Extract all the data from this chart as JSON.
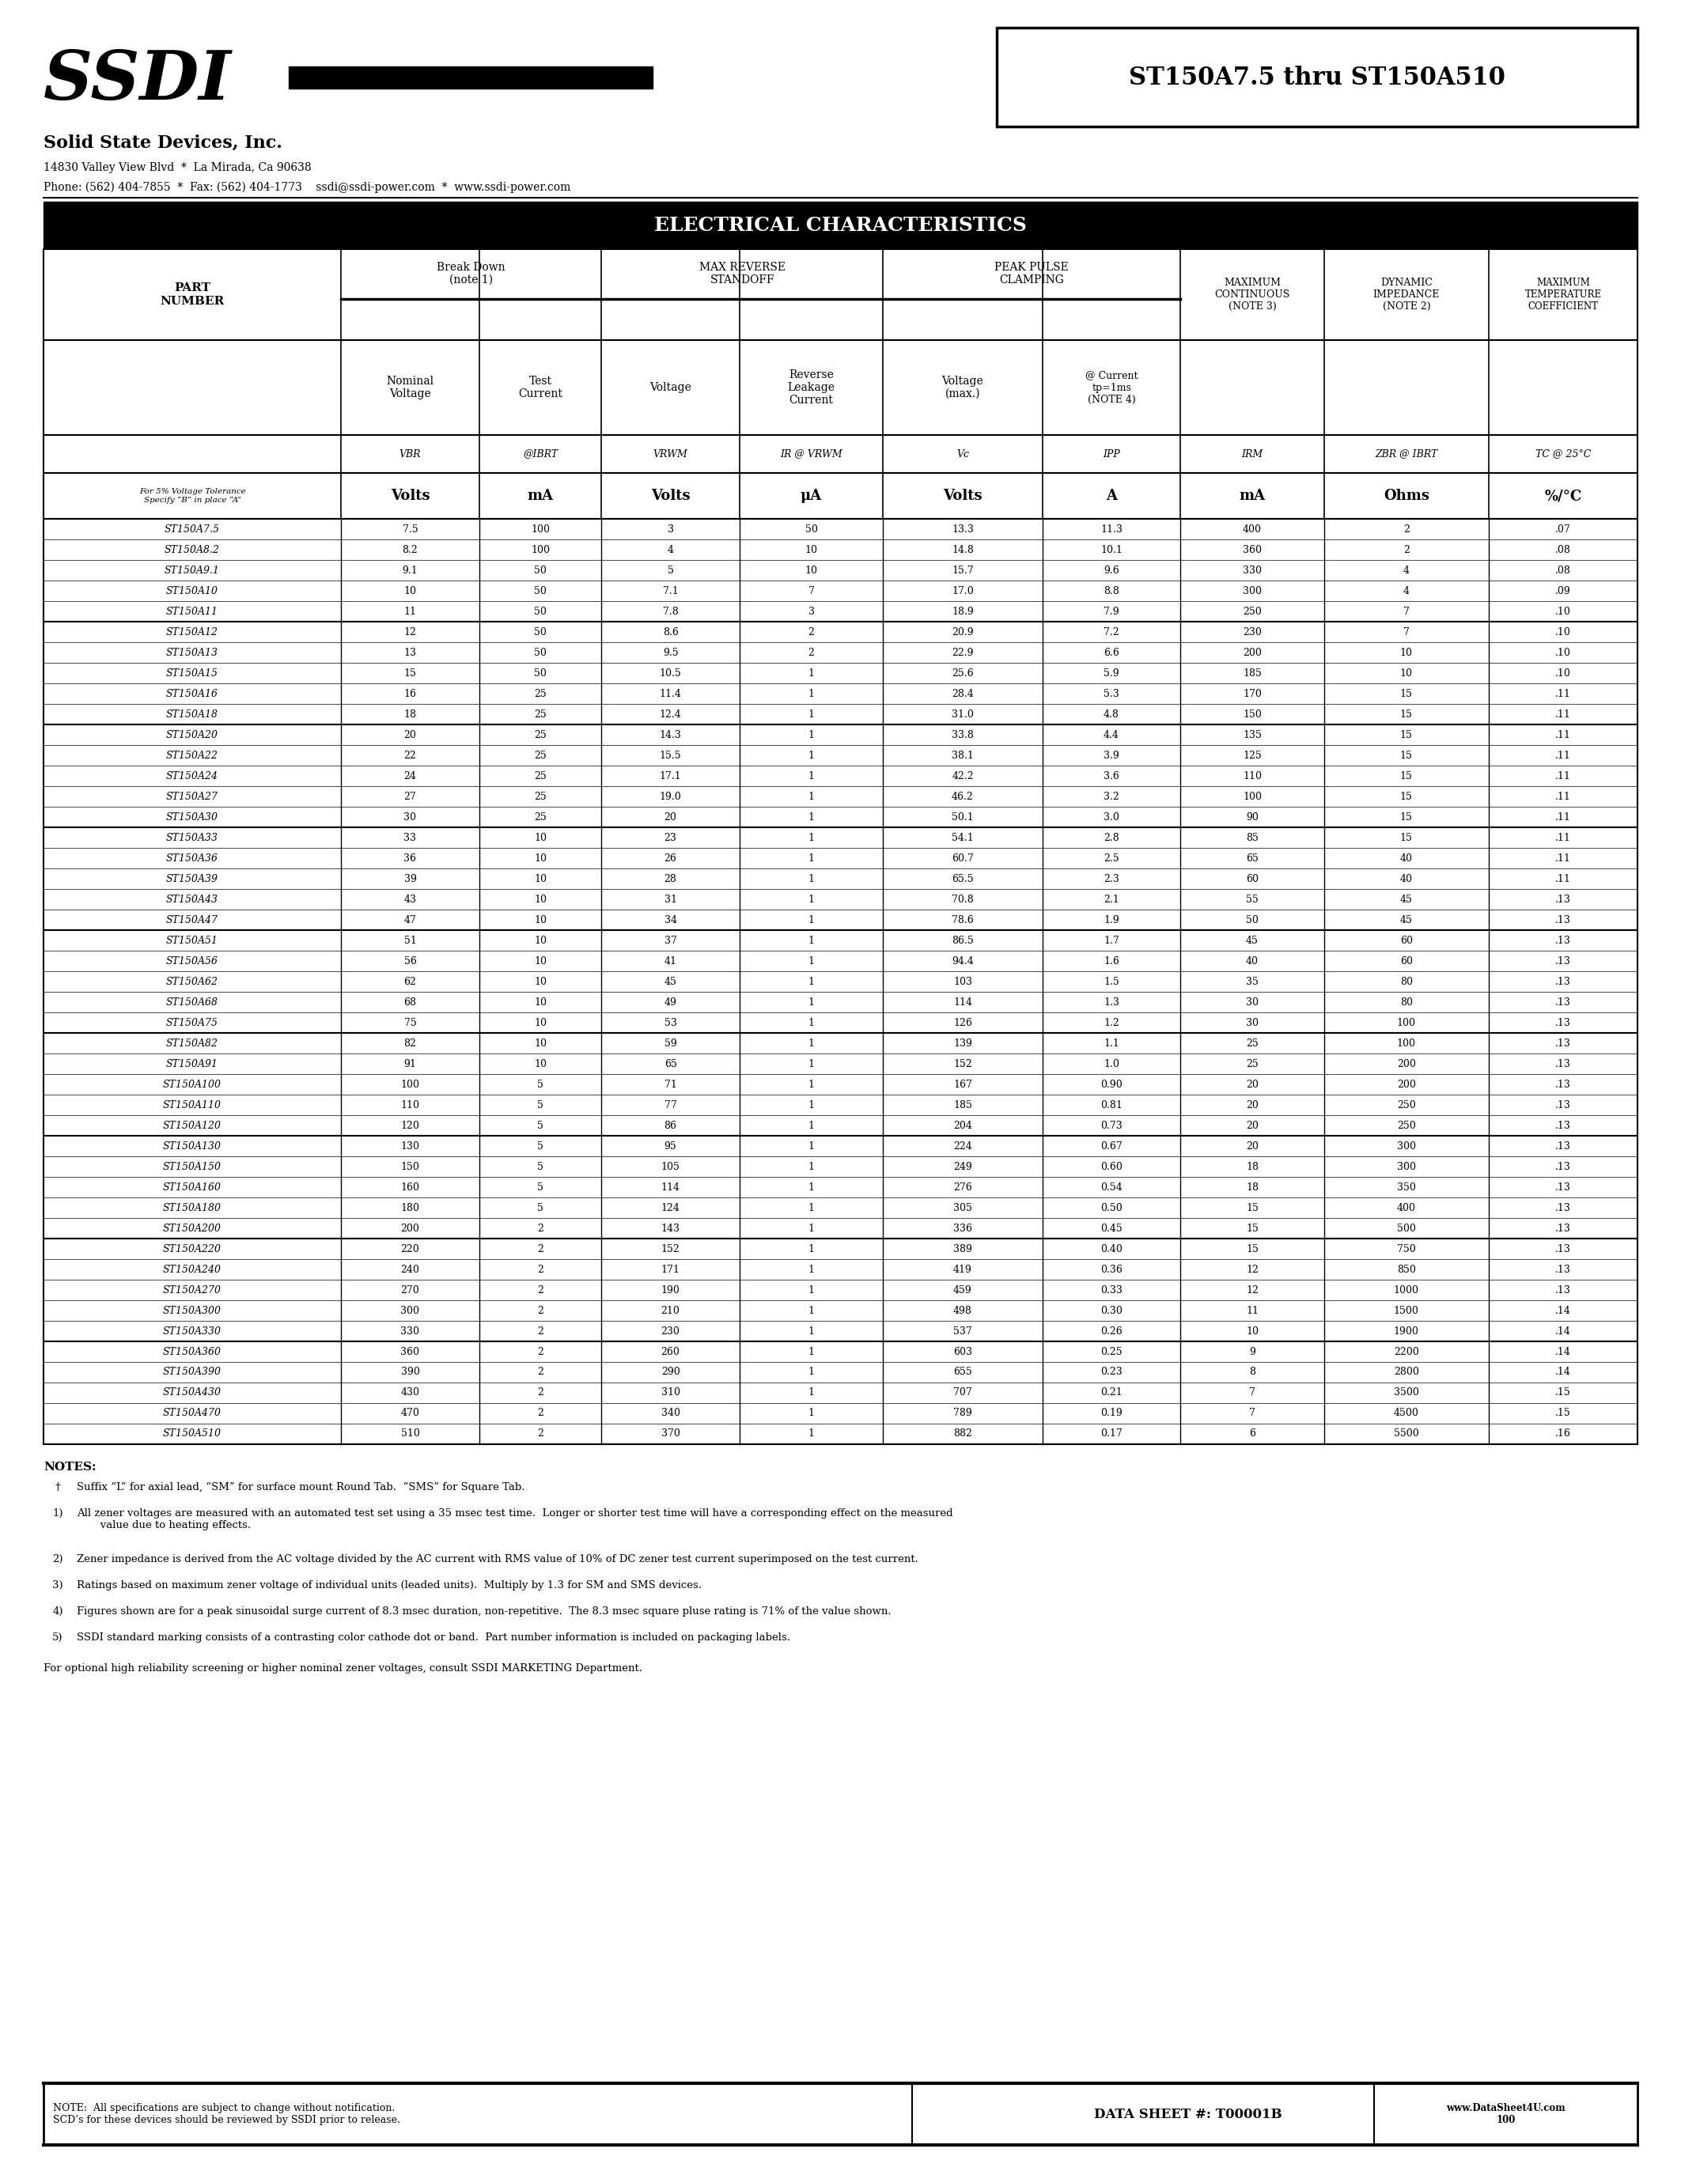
{
  "title_box": "ST150A7.5 thru ST150A510",
  "company_name": "Solid State Devices, Inc.",
  "address": "14830 Valley View Blvd  *  La Mirada, Ca 90638",
  "phone": "Phone: (562) 404-7855  *  Fax: (562) 404-1773    ssdi@ssdi-power.com  *  www.ssdi-power.com",
  "table_title": "ELECTRICAL CHARACTERISTICS",
  "col_headers_units": [
    "For 5% Voltage Tolerance\nSpecify “B” in place “A”",
    "Volts",
    "mA",
    "Volts",
    "μA",
    "Volts",
    "A",
    "mA",
    "Ohms",
    "%/°C"
  ],
  "data_groups": [
    {
      "rows": [
        [
          "ST150A7.5",
          "7.5",
          "100",
          "3",
          "50",
          "13.3",
          "11.3",
          "400",
          "2",
          ".07"
        ],
        [
          "ST150A8.2",
          "8.2",
          "100",
          "4",
          "10",
          "14.8",
          "10.1",
          "360",
          "2",
          ".08"
        ],
        [
          "ST150A9.1",
          "9.1",
          "50",
          "5",
          "10",
          "15.7",
          "9.6",
          "330",
          "4",
          ".08"
        ],
        [
          "ST150A10",
          "10",
          "50",
          "7.1",
          "7",
          "17.0",
          "8.8",
          "300",
          "4",
          ".09"
        ],
        [
          "ST150A11",
          "11",
          "50",
          "7.8",
          "3",
          "18.9",
          "7.9",
          "250",
          "7",
          ".10"
        ]
      ]
    },
    {
      "rows": [
        [
          "ST150A12",
          "12",
          "50",
          "8.6",
          "2",
          "20.9",
          "7.2",
          "230",
          "7",
          ".10"
        ],
        [
          "ST150A13",
          "13",
          "50",
          "9.5",
          "2",
          "22.9",
          "6.6",
          "200",
          "10",
          ".10"
        ],
        [
          "ST150A15",
          "15",
          "50",
          "10.5",
          "1",
          "25.6",
          "5.9",
          "185",
          "10",
          ".10"
        ],
        [
          "ST150A16",
          "16",
          "25",
          "11.4",
          "1",
          "28.4",
          "5.3",
          "170",
          "15",
          ".11"
        ],
        [
          "ST150A18",
          "18",
          "25",
          "12.4",
          "1",
          "31.0",
          "4.8",
          "150",
          "15",
          ".11"
        ]
      ]
    },
    {
      "rows": [
        [
          "ST150A20",
          "20",
          "25",
          "14.3",
          "1",
          "33.8",
          "4.4",
          "135",
          "15",
          ".11"
        ],
        [
          "ST150A22",
          "22",
          "25",
          "15.5",
          "1",
          "38.1",
          "3.9",
          "125",
          "15",
          ".11"
        ],
        [
          "ST150A24",
          "24",
          "25",
          "17.1",
          "1",
          "42.2",
          "3.6",
          "110",
          "15",
          ".11"
        ],
        [
          "ST150A27",
          "27",
          "25",
          "19.0",
          "1",
          "46.2",
          "3.2",
          "100",
          "15",
          ".11"
        ],
        [
          "ST150A30",
          "30",
          "25",
          "20",
          "1",
          "50.1",
          "3.0",
          "90",
          "15",
          ".11"
        ]
      ]
    },
    {
      "rows": [
        [
          "ST150A33",
          "33",
          "10",
          "23",
          "1",
          "54.1",
          "2.8",
          "85",
          "15",
          ".11"
        ],
        [
          "ST150A36",
          "36",
          "10",
          "26",
          "1",
          "60.7",
          "2.5",
          "65",
          "40",
          ".11"
        ],
        [
          "ST150A39",
          "39",
          "10",
          "28",
          "1",
          "65.5",
          "2.3",
          "60",
          "40",
          ".11"
        ],
        [
          "ST150A43",
          "43",
          "10",
          "31",
          "1",
          "70.8",
          "2.1",
          "55",
          "45",
          ".13"
        ],
        [
          "ST150A47",
          "47",
          "10",
          "34",
          "1",
          "78.6",
          "1.9",
          "50",
          "45",
          ".13"
        ]
      ]
    },
    {
      "rows": [
        [
          "ST150A51",
          "51",
          "10",
          "37",
          "1",
          "86.5",
          "1.7",
          "45",
          "60",
          ".13"
        ],
        [
          "ST150A56",
          "56",
          "10",
          "41",
          "1",
          "94.4",
          "1.6",
          "40",
          "60",
          ".13"
        ],
        [
          "ST150A62",
          "62",
          "10",
          "45",
          "1",
          "103",
          "1.5",
          "35",
          "80",
          ".13"
        ],
        [
          "ST150A68",
          "68",
          "10",
          "49",
          "1",
          "114",
          "1.3",
          "30",
          "80",
          ".13"
        ],
        [
          "ST150A75",
          "75",
          "10",
          "53",
          "1",
          "126",
          "1.2",
          "30",
          "100",
          ".13"
        ]
      ]
    },
    {
      "rows": [
        [
          "ST150A82",
          "82",
          "10",
          "59",
          "1",
          "139",
          "1.1",
          "25",
          "100",
          ".13"
        ],
        [
          "ST150A91",
          "91",
          "10",
          "65",
          "1",
          "152",
          "1.0",
          "25",
          "200",
          ".13"
        ],
        [
          "ST150A100",
          "100",
          "5",
          "71",
          "1",
          "167",
          "0.90",
          "20",
          "200",
          ".13"
        ],
        [
          "ST150A110",
          "110",
          "5",
          "77",
          "1",
          "185",
          "0.81",
          "20",
          "250",
          ".13"
        ],
        [
          "ST150A120",
          "120",
          "5",
          "86",
          "1",
          "204",
          "0.73",
          "20",
          "250",
          ".13"
        ]
      ]
    },
    {
      "rows": [
        [
          "ST150A130",
          "130",
          "5",
          "95",
          "1",
          "224",
          "0.67",
          "20",
          "300",
          ".13"
        ],
        [
          "ST150A150",
          "150",
          "5",
          "105",
          "1",
          "249",
          "0.60",
          "18",
          "300",
          ".13"
        ],
        [
          "ST150A160",
          "160",
          "5",
          "114",
          "1",
          "276",
          "0.54",
          "18",
          "350",
          ".13"
        ],
        [
          "ST150A180",
          "180",
          "5",
          "124",
          "1",
          "305",
          "0.50",
          "15",
          "400",
          ".13"
        ],
        [
          "ST150A200",
          "200",
          "2",
          "143",
          "1",
          "336",
          "0.45",
          "15",
          "500",
          ".13"
        ]
      ]
    },
    {
      "rows": [
        [
          "ST150A220",
          "220",
          "2",
          "152",
          "1",
          "389",
          "0.40",
          "15",
          "750",
          ".13"
        ],
        [
          "ST150A240",
          "240",
          "2",
          "171",
          "1",
          "419",
          "0.36",
          "12",
          "850",
          ".13"
        ],
        [
          "ST150A270",
          "270",
          "2",
          "190",
          "1",
          "459",
          "0.33",
          "12",
          "1000",
          ".13"
        ],
        [
          "ST150A300",
          "300",
          "2",
          "210",
          "1",
          "498",
          "0.30",
          "11",
          "1500",
          ".14"
        ],
        [
          "ST150A330",
          "330",
          "2",
          "230",
          "1",
          "537",
          "0.26",
          "10",
          "1900",
          ".14"
        ]
      ]
    },
    {
      "rows": [
        [
          "ST150A360",
          "360",
          "2",
          "260",
          "1",
          "603",
          "0.25",
          "9",
          "2200",
          ".14"
        ],
        [
          "ST150A390",
          "390",
          "2",
          "290",
          "1",
          "655",
          "0.23",
          "8",
          "2800",
          ".14"
        ],
        [
          "ST150A430",
          "430",
          "2",
          "310",
          "1",
          "707",
          "0.21",
          "7",
          "3500",
          ".15"
        ],
        [
          "ST150A470",
          "470",
          "2",
          "340",
          "1",
          "789",
          "0.19",
          "7",
          "4500",
          ".15"
        ],
        [
          "ST150A510",
          "510",
          "2",
          "370",
          "1",
          "882",
          "0.17",
          "6",
          "5500",
          ".16"
        ]
      ]
    }
  ],
  "notes_title": "NOTES:",
  "notes": [
    [
      "†",
      "Suffix “L” for axial lead, “SM” for surface mount Round Tab.  “SMS” for Square Tab."
    ],
    [
      "1)",
      "All zener voltages are measured with an automated test set using a 35 msec test time.  Longer or shorter test time will have a corresponding effect on the measured\n       value due to heating effects."
    ],
    [
      "2)",
      "Zener impedance is derived from the AC voltage divided by the AC current with RMS value of 10% of DC zener test current superimposed on the test current."
    ],
    [
      "3)",
      "Ratings based on maximum zener voltage of individual units (leaded units).  Multiply by 1.3 for SM and SMS devices."
    ],
    [
      "4)",
      "Figures shown are for a peak sinusoidal surge current of 8.3 msec duration, non-repetitive.  The 8.3 msec square pluse rating is 71% of the value shown."
    ],
    [
      "5)",
      "SSDI standard marking consists of a contrasting color cathode dot or band.  Part number information is included on packaging labels."
    ]
  ],
  "optional_text": "For optional high reliability screening or higher nominal zener voltages, consult SSDI MARKETING Department.",
  "footer_note": "NOTE:  All specifications are subject to change without notification.\nSCD’s for these devices should be reviewed by SSDI prior to release.",
  "footer_datasheet": "DATA SHEET #: T00001B",
  "footer_website": "www.DataSheet4U.com\n100"
}
